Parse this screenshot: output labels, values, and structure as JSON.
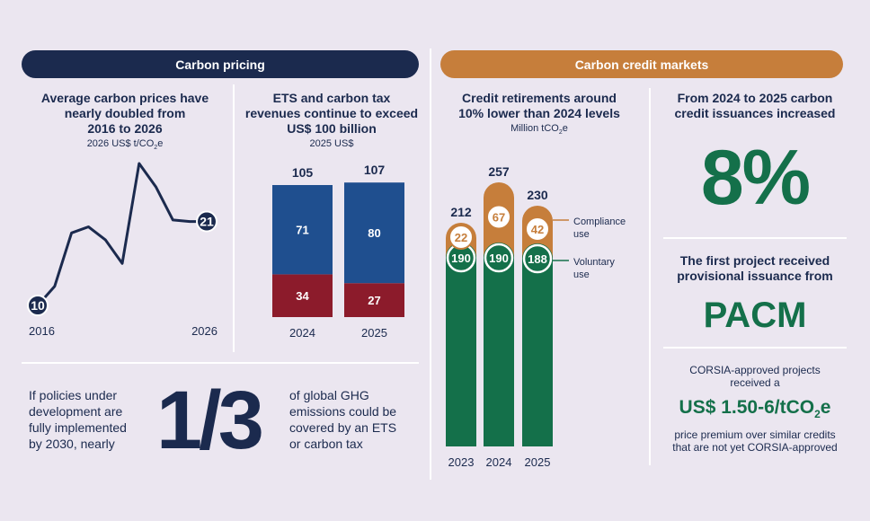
{
  "banners": {
    "left": "Carbon pricing",
    "right": "Carbon credit markets"
  },
  "panel1": {
    "title_lines": [
      "Average carbon prices have",
      "nearly doubled from",
      "2016 to 2026"
    ],
    "unit_prefix": "2026 US$ t/CO",
    "unit_sub": "2",
    "unit_suffix": "e"
  },
  "panel2": {
    "title_lines": [
      "ETS and carbon tax",
      "revenues continue to exceed",
      "US$ 100 billion"
    ],
    "unit": "2025 US$"
  },
  "panel3": {
    "title_lines": [
      "Credit retirements around",
      "10% lower than 2024 levels"
    ],
    "unit_prefix": "Million tCO",
    "unit_sub": "2",
    "unit_suffix": "e"
  },
  "panel4": {
    "title_lines": [
      "From 2024 to 2025 carbon",
      "credit issuances increased"
    ],
    "big_value": "8%",
    "project_lines": [
      "The first project received",
      "provisional issuance from"
    ],
    "project_name": "PACM",
    "corsia_lines": [
      "CORSIA-approved projects",
      "received a"
    ],
    "premium_prefix": "US$ 1.50-6/tCO",
    "premium_sub": "2",
    "premium_suffix": "e",
    "premium_desc_lines": [
      "price premium over similar credits",
      "that are not yet CORSIA-approved"
    ]
  },
  "bottom_left": {
    "left_lines": [
      "If policies under",
      "development are",
      "fully implemented",
      "by 2030, nearly"
    ],
    "fraction": "1/3",
    "right_lines": [
      "of global GHG",
      "emissions could be",
      "covered by an ETS",
      "or carbon tax"
    ]
  },
  "chart_data": [
    {
      "type": "line",
      "title": "Average carbon prices have nearly doubled from 2016 to 2026",
      "ylabel": "2026 US$ t/CO2e",
      "x_start_label": "2016",
      "x_end_label": "2026",
      "series": [
        {
          "values": [
            10,
            12.5,
            19.5,
            20.3,
            18.6,
            15.5,
            28.6,
            25.5,
            21.2,
            21,
            21
          ]
        }
      ],
      "labeled_points": [
        {
          "index": 0,
          "label": "10"
        },
        {
          "index": 10,
          "label": "21"
        }
      ],
      "colors": {
        "line": "#1b2a4e"
      }
    },
    {
      "type": "bar",
      "stacked": true,
      "title": "ETS and carbon tax revenues continue to exceed US$ 100 billion",
      "ylabel": "2025 US$",
      "categories": [
        "2024",
        "2025"
      ],
      "totals": [
        "105",
        "107"
      ],
      "series": [
        {
          "values": [
            34,
            27
          ],
          "color": "#8c1b2b"
        },
        {
          "values": [
            71,
            80
          ],
          "color": "#1f4f8f"
        }
      ]
    },
    {
      "type": "bar",
      "stacked": true,
      "title": "Credit retirements around 10% lower than 2024 levels",
      "ylabel": "Million tCO2e",
      "categories": [
        "2023",
        "2024",
        "2025"
      ],
      "totals": [
        "212",
        "257",
        "230"
      ],
      "series": [
        {
          "name": "Voluntary use",
          "values": [
            190,
            190,
            188
          ],
          "color": "#14704a"
        },
        {
          "name": "Compliance use",
          "values": [
            22,
            67,
            42
          ],
          "color": "#c67e3b"
        }
      ],
      "legend": [
        "Compliance use",
        "Voluntary use"
      ]
    }
  ]
}
